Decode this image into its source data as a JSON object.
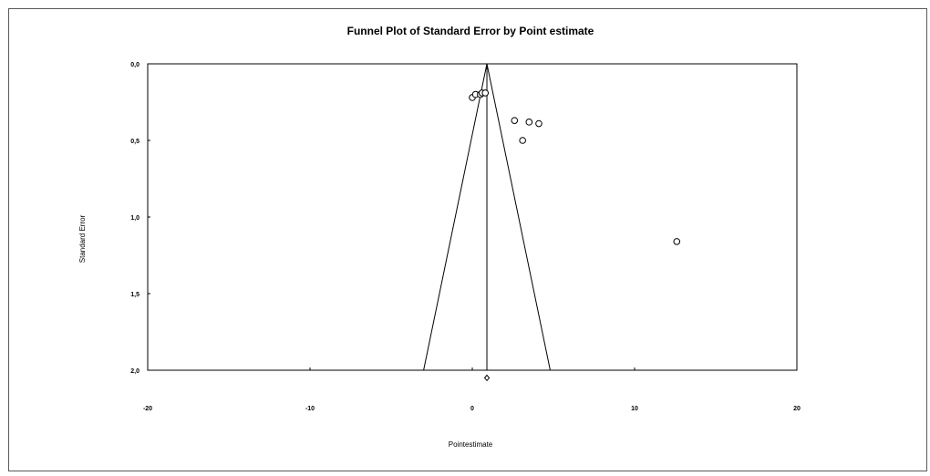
{
  "chart_data": {
    "type": "scatter",
    "title": "Funnel Plot of Standard Error by Point estimate",
    "xlabel": "Pointestimate",
    "ylabel": "Standard Error",
    "xlim": [
      -20,
      20
    ],
    "ylim": [
      0,
      2
    ],
    "y_inverted": true,
    "x_ticks": [
      "-20",
      "-10",
      "0",
      "10",
      "20"
    ],
    "y_ticks": [
      "0,0",
      "0,5",
      "1,0",
      "1,5",
      "2,0"
    ],
    "pooled_estimate": 0.9,
    "funnel_bottom": [
      -3.0,
      4.8
    ],
    "funnel_apex_se": 0,
    "points": [
      {
        "x": 0.0,
        "y": 0.22
      },
      {
        "x": 0.2,
        "y": 0.2
      },
      {
        "x": 0.5,
        "y": 0.2
      },
      {
        "x": 0.6,
        "y": 0.19
      },
      {
        "x": 0.8,
        "y": 0.19
      },
      {
        "x": 2.6,
        "y": 0.37
      },
      {
        "x": 3.5,
        "y": 0.38
      },
      {
        "x": 4.1,
        "y": 0.39
      },
      {
        "x": 3.1,
        "y": 0.5
      },
      {
        "x": 12.6,
        "y": 1.16
      }
    ],
    "summary_marker": {
      "x": 0.9,
      "y": 2.05
    },
    "grid": false,
    "legend": "none"
  }
}
